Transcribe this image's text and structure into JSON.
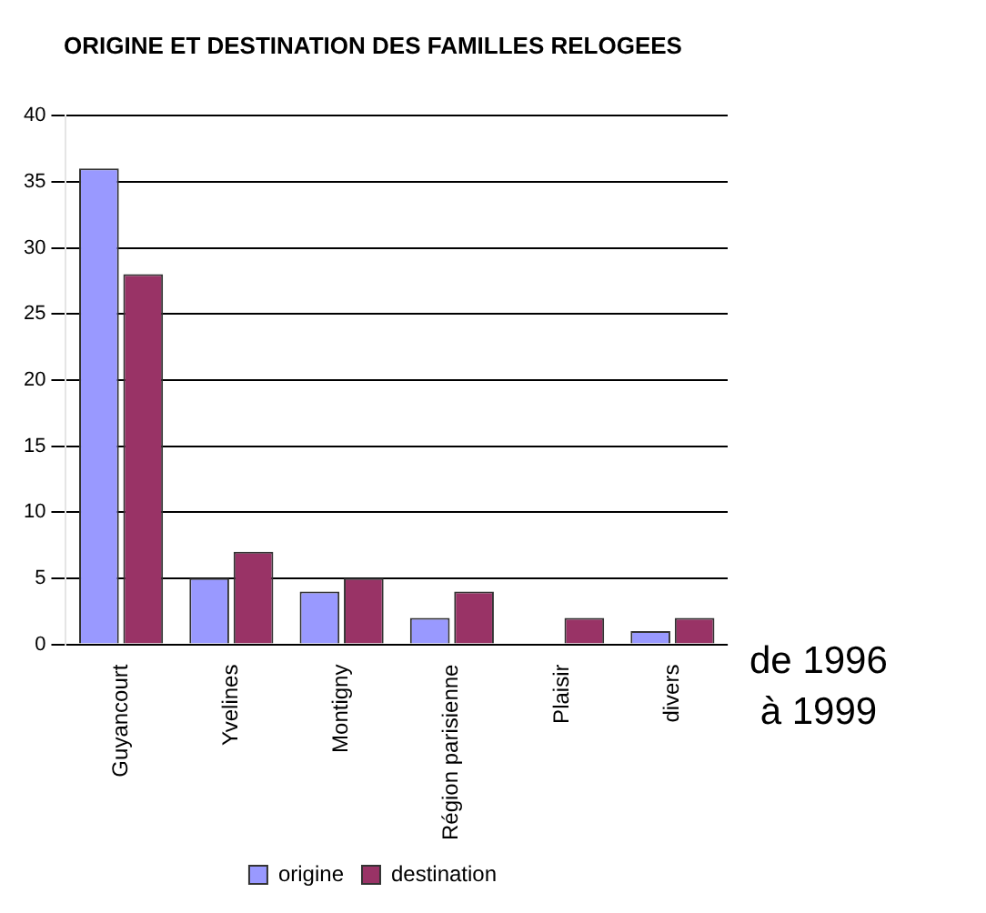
{
  "chart_data": {
    "type": "bar",
    "title": "ORIGINE ET DESTINATION DES FAMILLES RELOGEES",
    "categories": [
      "Guyancourt",
      "Yvelines",
      "Montigny",
      "Région parisienne",
      "Plaisir",
      "divers"
    ],
    "series": [
      {
        "name": "origine",
        "color": "#9999ff",
        "values": [
          36,
          5,
          4,
          2,
          0,
          1
        ]
      },
      {
        "name": "destination",
        "color": "#993366",
        "values": [
          28,
          7,
          5,
          4,
          2,
          2
        ]
      }
    ],
    "ylim": [
      0,
      40
    ],
    "yticks": [
      0,
      5,
      10,
      15,
      20,
      25,
      30,
      35,
      40
    ],
    "grid": "y",
    "legend": "bottom",
    "annotations": [
      "de 1996\nà 1999"
    ]
  }
}
